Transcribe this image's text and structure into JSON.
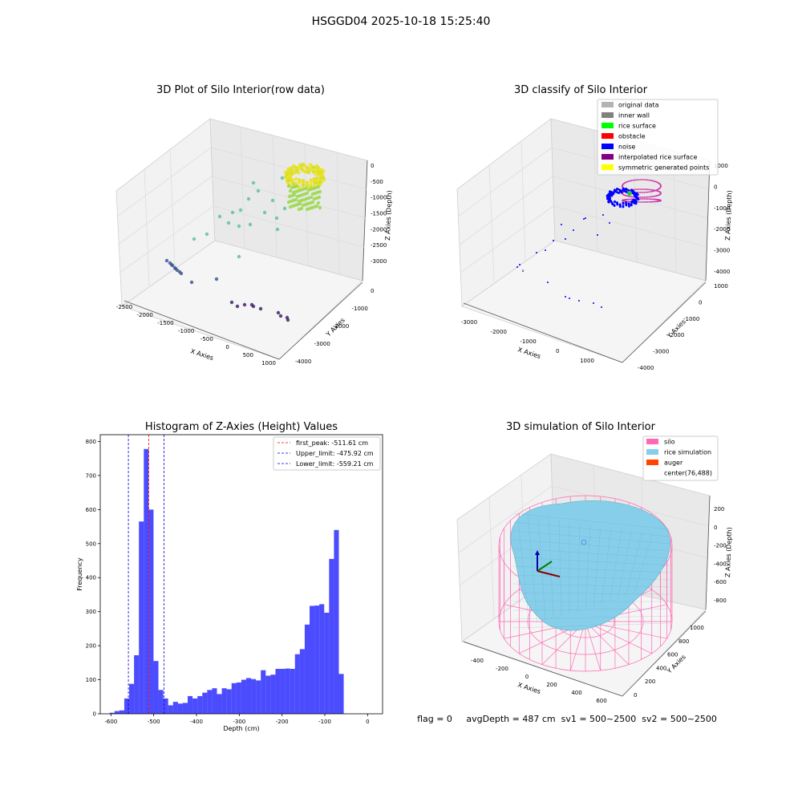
{
  "suptitle": "HSGGD04 2025-10-18 15:25:40",
  "status_line": "flag = 0     avgDepth = 487 cm  sv1 = 500~2500  sv2 = 500~2500",
  "chart_data": [
    {
      "type": "scatter",
      "panel": "top-left",
      "projection": "3d",
      "title": "3D Plot of Silo Interior(row data)",
      "xlabel": "X Axies",
      "ylabel": "Y Axies",
      "zlabel": "Z Axies (Depth)",
      "xticks": [
        "-2500",
        "-2000",
        "-1500",
        "-1000",
        "-500",
        "0",
        "500",
        "1000"
      ],
      "yticks": [
        "-4000",
        "-3000",
        "-2000",
        "-1000",
        "0"
      ],
      "zticks": [
        "-3000",
        "-2500",
        "-2000",
        "-1500",
        "-1000",
        "-500",
        "0"
      ],
      "colormap": "viridis",
      "grid": true
    },
    {
      "type": "scatter",
      "panel": "top-right",
      "projection": "3d",
      "title": "3D classify of Silo Interior",
      "xlabel": "X Axies",
      "ylabel": "Y Axies",
      "zlabel": "Z Axies (Depth)",
      "xticks": [
        "-3000",
        "-2000",
        "-1000",
        "0",
        "1000"
      ],
      "yticks": [
        "-4000",
        "-3000",
        "-2000",
        "-1000",
        "0",
        "1000"
      ],
      "zticks": [
        "-4000",
        "-3000",
        "-2000",
        "-1000",
        "0",
        "1000"
      ],
      "legend_placement": "top-right",
      "legend": [
        {
          "label": "original data",
          "color": "#b3b3b3"
        },
        {
          "label": "inner wall",
          "color": "#808080"
        },
        {
          "label": "rice surface",
          "color": "#00ff00"
        },
        {
          "label": "obstacle",
          "color": "#ff0000"
        },
        {
          "label": "noise",
          "color": "#0000ff"
        },
        {
          "label": "interpolated rice surface",
          "color": "#800080"
        },
        {
          "label": "symmetric generated points",
          "color": "#ffff00"
        }
      ],
      "grid": true
    },
    {
      "type": "bar",
      "panel": "bottom-left",
      "title": "Histogram of Z-Axies (Height) Values",
      "xlabel": "Depth (cm)",
      "ylabel": "Frequency",
      "xlim": [
        -625,
        35
      ],
      "ylim": [
        0,
        820
      ],
      "xticks": [
        -600,
        -500,
        -400,
        -300,
        -200,
        -100,
        0
      ],
      "yticks": [
        0,
        100,
        200,
        300,
        400,
        500,
        600,
        700,
        800
      ],
      "bin_start": -603,
      "bin_width": 11.4,
      "values": [
        3,
        8,
        10,
        45,
        88,
        172,
        565,
        778,
        600,
        155,
        70,
        45,
        25,
        35,
        30,
        32,
        52,
        45,
        52,
        62,
        70,
        75,
        58,
        75,
        72,
        90,
        92,
        100,
        105,
        102,
        98,
        128,
        112,
        115,
        132,
        132,
        133,
        132,
        175,
        190,
        262,
        317,
        318,
        322,
        297,
        455,
        540,
        117
      ],
      "bar_color": "#0000ff",
      "vlines": [
        {
          "x": -511.61,
          "label": "first_peak: -511.61 cm",
          "color": "#ff0000"
        },
        {
          "x": -475.92,
          "label": "Upper_limit: -475.92 cm",
          "color": "#0000cc"
        },
        {
          "x": -559.21,
          "label": "Lower_limit: -559.21 cm",
          "color": "#0000cc"
        }
      ],
      "legend_placement": "top-right"
    },
    {
      "type": "area",
      "panel": "bottom-right",
      "projection": "3d",
      "title": "3D simulation of Silo Interior",
      "xlabel": "X Axies",
      "ylabel": "Y Axies",
      "zlabel": "Z Axies (Depth)",
      "xticks": [
        "-400",
        "-200",
        "0",
        "200",
        "400",
        "600"
      ],
      "yticks": [
        "0",
        "200",
        "400",
        "600",
        "800",
        "1000"
      ],
      "zticks": [
        "-800",
        "-600",
        "-400",
        "-200",
        "0",
        "200"
      ],
      "legend_placement": "top-right",
      "legend": [
        {
          "label": "silo",
          "color": "#ff69b4"
        },
        {
          "label": "rice simulation",
          "color": "#87ceeb"
        },
        {
          "label": "auger",
          "color": "#ff4500"
        },
        {
          "label": "center(76,488)",
          "color": ""
        }
      ],
      "grid": true
    }
  ]
}
